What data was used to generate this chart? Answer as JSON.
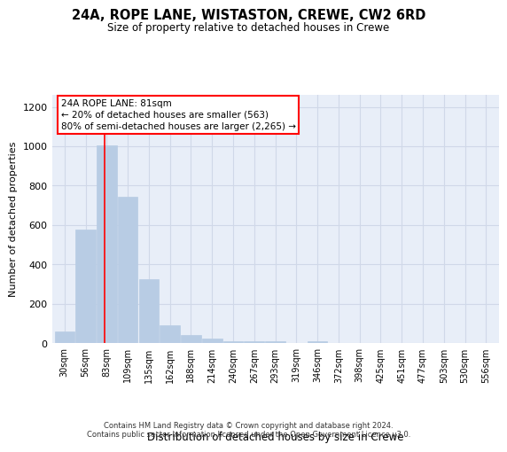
{
  "title_line1": "24A, ROPE LANE, WISTASTON, CREWE, CW2 6RD",
  "title_line2": "Size of property relative to detached houses in Crewe",
  "xlabel": "Distribution of detached houses by size in Crewe",
  "ylabel": "Number of detached properties",
  "categories": [
    "30sqm",
    "56sqm",
    "83sqm",
    "109sqm",
    "135sqm",
    "162sqm",
    "188sqm",
    "214sqm",
    "240sqm",
    "267sqm",
    "293sqm",
    "319sqm",
    "346sqm",
    "372sqm",
    "398sqm",
    "425sqm",
    "451sqm",
    "477sqm",
    "503sqm",
    "530sqm",
    "556sqm"
  ],
  "values": [
    60,
    575,
    1005,
    745,
    325,
    90,
    40,
    22,
    12,
    8,
    8,
    0,
    12,
    0,
    0,
    0,
    0,
    0,
    0,
    0,
    0
  ],
  "bar_color": "#b8cce4",
  "bar_edge_color": "#b8cce4",
  "grid_color": "#d0d8e8",
  "background_color": "#e8eef8",
  "annotation_box_text": "24A ROPE LANE: 81sqm\n← 20% of detached houses are smaller (563)\n80% of semi-detached houses are larger (2,265) →",
  "annotation_box_color": "red",
  "ylim": [
    0,
    1260
  ],
  "yticks": [
    0,
    200,
    400,
    600,
    800,
    1000,
    1200
  ],
  "footer_line1": "Contains HM Land Registry data © Crown copyright and database right 2024.",
  "footer_line2": "Contains public sector information licensed under the Open Government Licence v3.0."
}
